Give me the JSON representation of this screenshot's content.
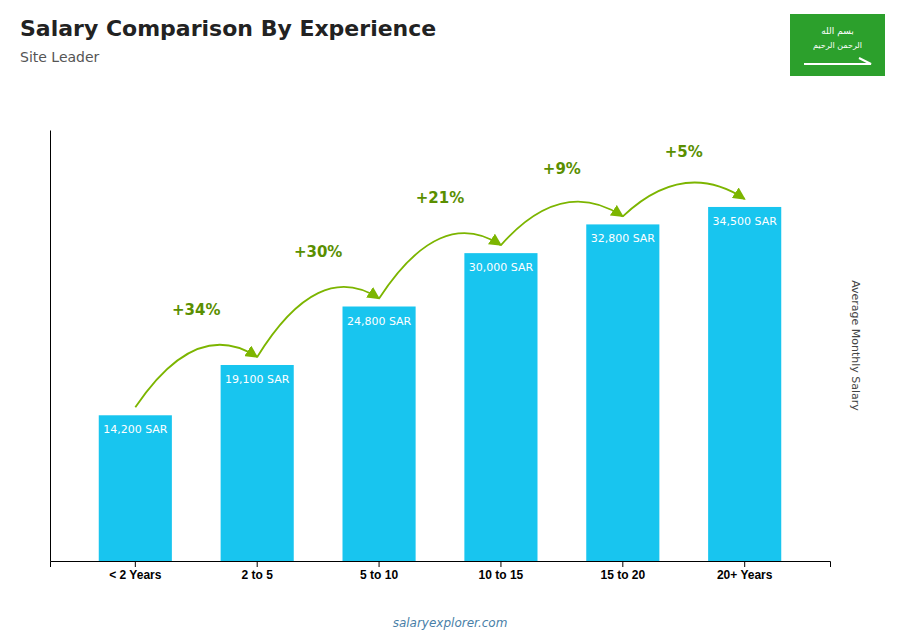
{
  "chart_data": {
    "type": "bar",
    "title": "Salary Comparison By Experience",
    "subtitle": "Site Leader",
    "y_label": "Average Monthly Salary",
    "categories": [
      "< 2 Years",
      "2 to 5",
      "5 to 10",
      "10 to 15",
      "15 to 20",
      "20+ Years"
    ],
    "values": [
      14200,
      19100,
      24800,
      30000,
      32800,
      34500
    ],
    "value_labels": [
      "14,200 SAR",
      "19,100 SAR",
      "24,800 SAR",
      "30,000 SAR",
      "32,800 SAR",
      "34,500 SAR"
    ],
    "data_labels": true,
    "annotations": [
      "+34%",
      "+30%",
      "+21%",
      "+9%",
      "+5%"
    ],
    "source": "salaryexplorer.com",
    "flag_text": [
      "بسم الله",
      "الرحمن الرحيم"
    ],
    "color": "#18c5ef",
    "ylim": [
      0,
      42000
    ],
    "tick_labels": "x",
    "grid": false
  }
}
